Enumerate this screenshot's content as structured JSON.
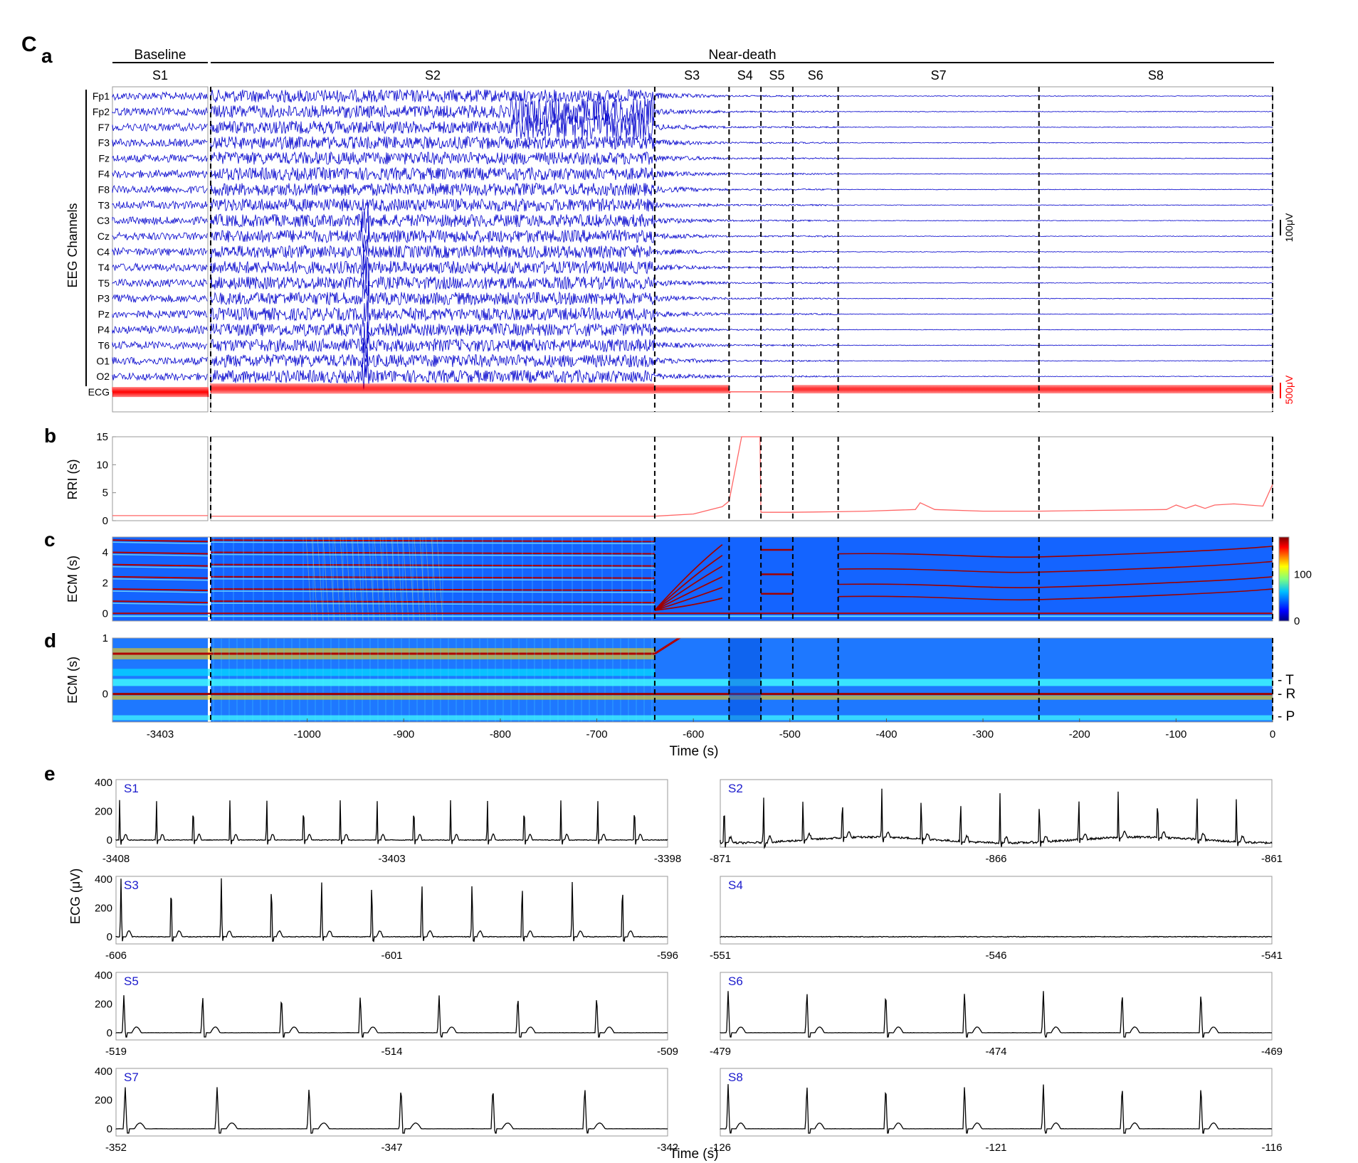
{
  "figure": {
    "label_main": "C",
    "panel_labels": [
      "a",
      "b",
      "c",
      "d",
      "e"
    ],
    "group_baseline": "Baseline",
    "group_near_death": "Near-death",
    "time_xlabel": "Time (s)"
  },
  "colors": {
    "eeg": "#0000cc",
    "ecg": "#ff0000",
    "rri": "#ff6666",
    "ecg_panels": "#000000",
    "stage_label": "#1a1acc"
  },
  "chart_data": [
    {
      "type": "line",
      "id": "eeg_ecg_traces",
      "ylabel": "EEG Channels",
      "channels": [
        "Fp1",
        "Fp2",
        "F7",
        "F3",
        "Fz",
        "F4",
        "F8",
        "T3",
        "C3",
        "Cz",
        "C4",
        "T4",
        "T5",
        "P3",
        "Pz",
        "P4",
        "T6",
        "O1",
        "O2",
        "ECG"
      ],
      "stages": [
        {
          "name": "S1",
          "start": -3408,
          "end": -3398
        },
        {
          "name": "S2",
          "start": -1100,
          "end": -640
        },
        {
          "name": "S3",
          "start": -640,
          "end": -563
        },
        {
          "name": "S4",
          "start": -563,
          "end": -530
        },
        {
          "name": "S5",
          "start": -530,
          "end": -497
        },
        {
          "name": "S6",
          "start": -497,
          "end": -450
        },
        {
          "name": "S7",
          "start": -450,
          "end": -242
        },
        {
          "name": "S8",
          "start": -242,
          "end": 0
        }
      ],
      "stage_boundaries": [
        -640,
        -563,
        -530,
        -497,
        -450,
        -242,
        0
      ],
      "scale_bar_eeg": "100μV",
      "scale_bar_ecg": "500μV"
    },
    {
      "type": "line",
      "id": "rri",
      "ylabel": "RRI (s)",
      "ylim": [
        0,
        15
      ],
      "yticks": [
        0,
        5,
        10,
        15
      ],
      "series": [
        {
          "x": [
            -3408,
            -3398,
            -1100,
            -640,
            -600,
            -570,
            -563,
            -550,
            -531,
            -530,
            -500,
            -450,
            -420,
            -370,
            -365,
            -350,
            -300,
            -242,
            -110,
            -100,
            -90,
            -80,
            -70,
            -60,
            -40,
            -10,
            0
          ],
          "y": [
            0.9,
            0.9,
            0.8,
            0.8,
            1.2,
            2.5,
            3.5,
            15,
            15,
            1.5,
            1.5,
            1.6,
            1.7,
            2.0,
            3.2,
            2.0,
            1.7,
            1.7,
            2.0,
            2.8,
            2.2,
            2.8,
            2.2,
            2.8,
            3.0,
            2.6,
            6.5
          ]
        }
      ]
    },
    {
      "type": "heatmap",
      "id": "ecm_c",
      "ylabel": "ECM (s)",
      "ylim": [
        -0.5,
        5
      ],
      "yticks": [
        0,
        2,
        4
      ],
      "colorbar_ticks": [
        0,
        100
      ]
    },
    {
      "type": "heatmap",
      "id": "ecm_d",
      "ylabel": "ECM (s)",
      "ylim": [
        -0.5,
        1
      ],
      "yticks": [
        0,
        1
      ],
      "xticks_baseline": [
        -3403
      ],
      "xticks": [
        -1000,
        -900,
        -800,
        -700,
        -600,
        -500,
        -400,
        -300,
        -200,
        -100,
        0
      ],
      "xlabel": "Time (s)",
      "wave_labels": [
        {
          "label": "T",
          "y": 0.25
        },
        {
          "label": "R",
          "y": 0.0
        },
        {
          "label": "P",
          "y": -0.4
        }
      ]
    },
    {
      "type": "line",
      "id": "ecg_segments",
      "ylabel": "ECG (μV)",
      "xlabel": "Time (s)",
      "ylim": [
        -50,
        420
      ],
      "yticks": [
        0,
        200,
        400
      ],
      "panels": [
        {
          "stage": "S1",
          "xticks": [
            -3408,
            -3403,
            -3398
          ],
          "beats": 15,
          "amp": 330
        },
        {
          "stage": "S2",
          "xticks": [
            -871,
            -866,
            -861
          ],
          "beats": 14,
          "amp": 350
        },
        {
          "stage": "S3",
          "xticks": [
            -606,
            -601,
            -596
          ],
          "beats": 11,
          "amp": 420
        },
        {
          "stage": "S4",
          "xticks": [
            -551,
            -546,
            -541
          ],
          "beats": 0,
          "amp": 0
        },
        {
          "stage": "S5",
          "xticks": [
            -519,
            -514,
            -509
          ],
          "beats": 7,
          "amp": 270
        },
        {
          "stage": "S6",
          "xticks": [
            -479,
            -474,
            -469
          ],
          "beats": 7,
          "amp": 300
        },
        {
          "stage": "S7",
          "xticks": [
            -352,
            -347,
            -342
          ],
          "beats": 6,
          "amp": 300
        },
        {
          "stage": "S8",
          "xticks": [
            -126,
            -121,
            -116
          ],
          "beats": 7,
          "amp": 320
        }
      ]
    }
  ]
}
